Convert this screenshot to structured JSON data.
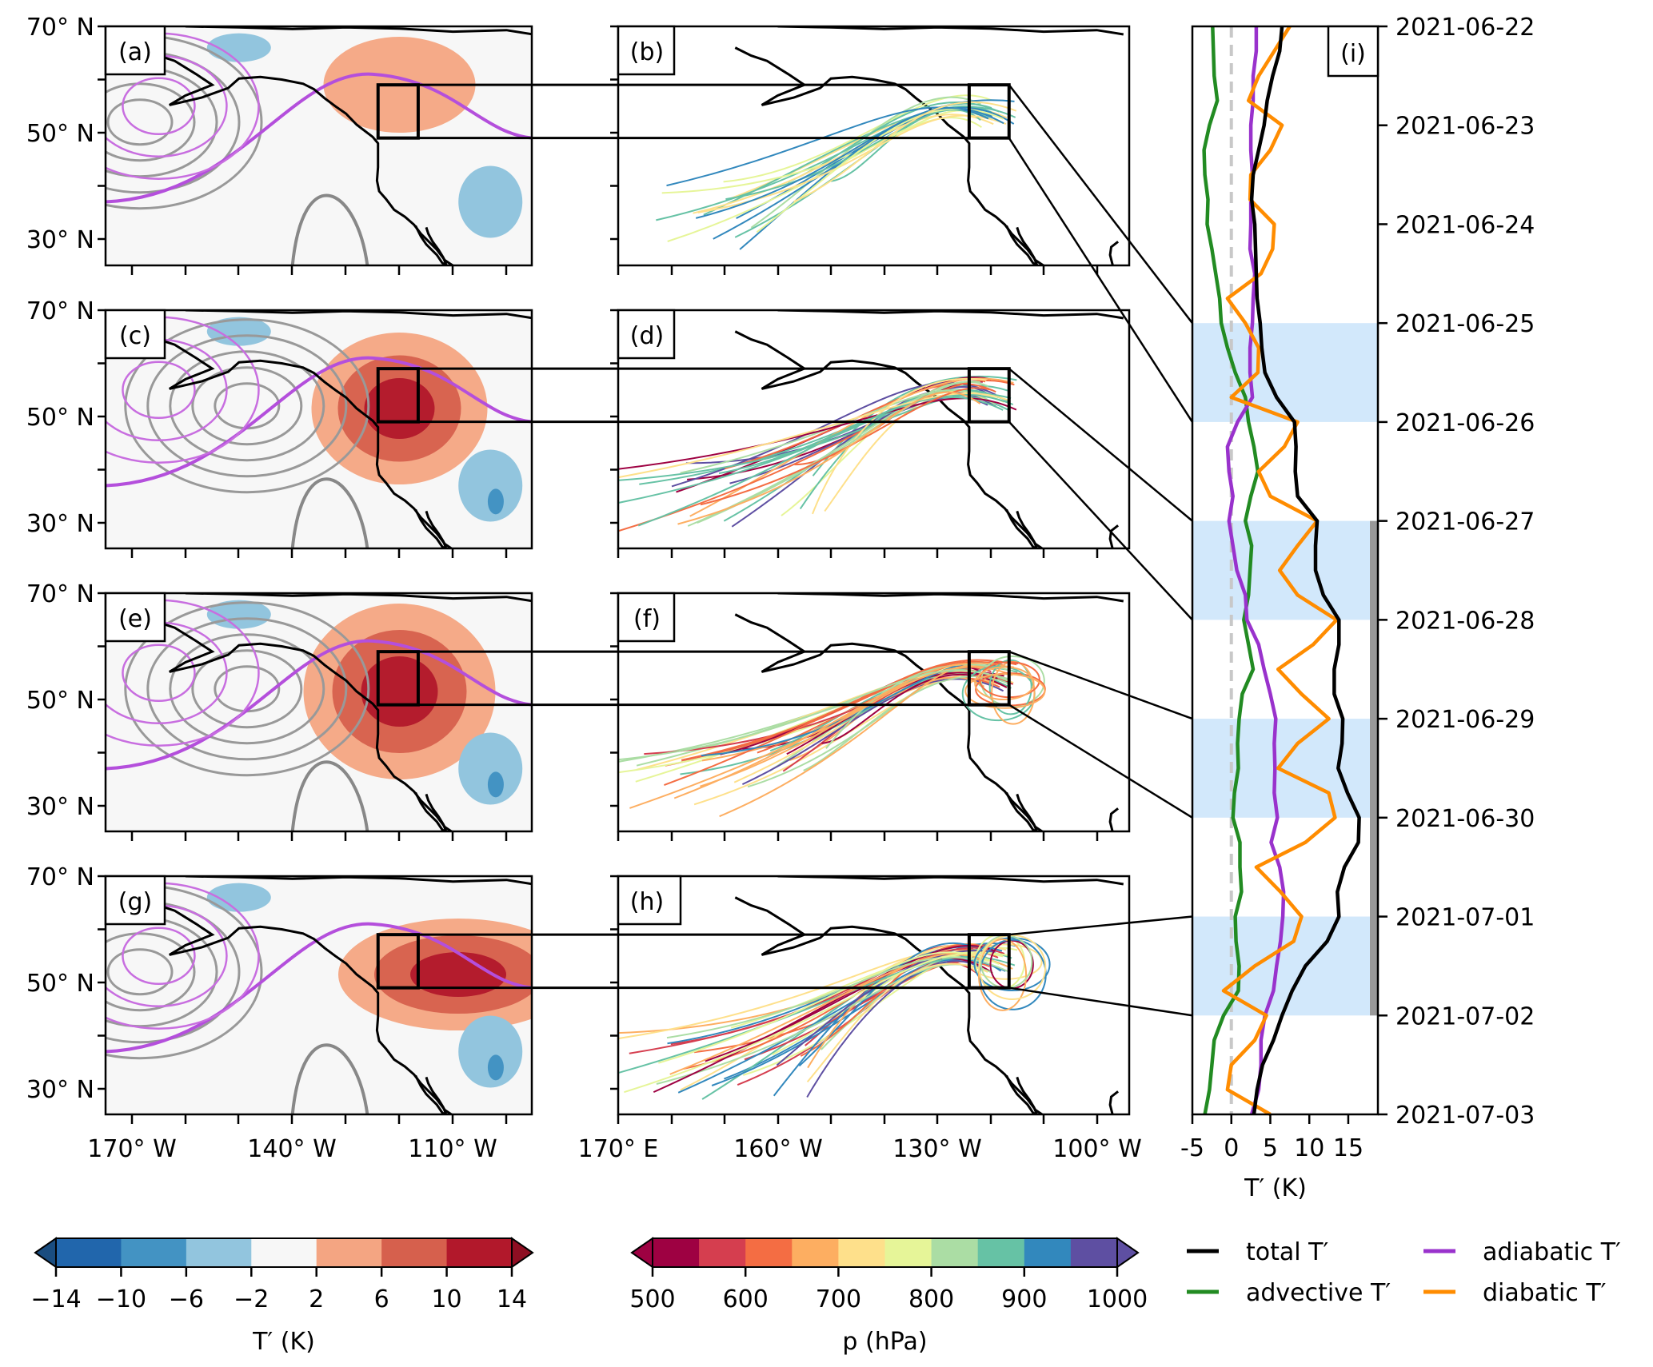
{
  "figure": {
    "description": "2021 Pacific Northwest heat wave: T' anomaly maps, backward trajectories, and T' decomposition time series"
  },
  "chart_data": [
    {
      "type": "map_contourf",
      "panels": [
        "(a)",
        "(c)",
        "(e)",
        "(g)"
      ],
      "panel_ids": [
        "a",
        "c",
        "e",
        "g"
      ],
      "lat_ticks": [
        "70° N",
        "50° N",
        "30° N"
      ],
      "lat_tick_values": [
        70,
        60,
        50,
        40,
        30
      ],
      "lon_ticks_labeled": [
        "170° W",
        "140° W",
        "110° W"
      ],
      "lon_tick_count": 8,
      "target_box": "approx 49–59° N, 124–113° W",
      "layers": [
        "T' filled contours",
        "geopotential contours (gray)",
        "geopotential anomaly contours (purple)",
        "coastlines"
      ]
    },
    {
      "type": "map_trajectories",
      "panels": [
        "(b)",
        "(d)",
        "(f)",
        "(h)"
      ],
      "panel_ids": [
        "b",
        "d",
        "f",
        "h"
      ],
      "lon_ticks_labeled": [
        "170° E",
        "160° W",
        "130° W",
        "100° W"
      ],
      "lon_tick_count": 10,
      "color_variable": "p (hPa)"
    },
    {
      "type": "line",
      "panel": "(i)",
      "xlabel": "T′ (K)",
      "xlim": [
        -5,
        18.8
      ],
      "xticks": [
        "-5",
        "0",
        "5",
        "10",
        "15"
      ],
      "xtick_values": [
        -5,
        0,
        5,
        10,
        15
      ],
      "y_axis": "time (downward)",
      "ylim_days": [
        0,
        11
      ],
      "yticks": [
        "2021-06-22",
        "2021-06-23",
        "2021-06-24",
        "2021-06-25",
        "2021-06-26",
        "2021-06-27",
        "2021-06-28",
        "2021-06-29",
        "2021-06-30",
        "2021-07-01",
        "2021-07-02",
        "2021-07-03"
      ],
      "shaded_periods_days": [
        [
          3,
          4
        ],
        [
          5,
          6
        ],
        [
          7,
          8
        ],
        [
          9,
          10
        ]
      ],
      "shade_color": "#d2e8fb",
      "heatwave_bar_days": [
        5,
        10
      ],
      "heatwave_bar_color": "#999999",
      "zero_line": {
        "x": 0,
        "color": "#c8c8c8",
        "style": "dashed"
      },
      "t_days": [
        0,
        0.25,
        0.5,
        0.75,
        1,
        1.25,
        1.5,
        1.75,
        2,
        2.25,
        2.5,
        2.75,
        3,
        3.25,
        3.5,
        3.75,
        4,
        4.25,
        4.5,
        4.75,
        5,
        5.25,
        5.5,
        5.75,
        6,
        6.25,
        6.5,
        6.75,
        7,
        7.25,
        7.5,
        7.75,
        8,
        8.25,
        8.5,
        8.75,
        9,
        9.25,
        9.5,
        9.75,
        10,
        10.25,
        10.5,
        10.75,
        11
      ],
      "series": [
        {
          "name": "total T′",
          "color": "#000000",
          "values": [
            6.5,
            6.2,
            5.3,
            4.6,
            4.2,
            3.5,
            2.8,
            2.6,
            3,
            3.1,
            3.2,
            3.3,
            3.7,
            3.9,
            4.3,
            5.8,
            8.1,
            8.3,
            8.2,
            8.5,
            11,
            10.8,
            10.8,
            11.8,
            13.8,
            13.8,
            13.2,
            13.2,
            14.3,
            14.2,
            13.7,
            14.9,
            16.4,
            16.3,
            14.5,
            13.6,
            13.8,
            12.3,
            9.5,
            7.8,
            6.5,
            5.4,
            4,
            3.3,
            2.9
          ]
        },
        {
          "name": "advective T′",
          "color": "#228b22",
          "values": [
            -2.4,
            -2.3,
            -2.2,
            -1.8,
            -2.8,
            -3.5,
            -3.4,
            -3,
            -3.1,
            -2.5,
            -2,
            -1.5,
            -1.3,
            -0.5,
            0.5,
            1.8,
            2.2,
            2.9,
            3.4,
            2.5,
            1.8,
            2.6,
            2.4,
            2.2,
            1.6,
            2.2,
            2.8,
            1.4,
            1,
            0.8,
            0.9,
            0.4,
            0.2,
            1.1,
            1.1,
            1.3,
            0.5,
            0.6,
            1,
            0.9,
            -1,
            -2.2,
            -2.5,
            -2.8,
            -3.4
          ]
        },
        {
          "name": "adiabatic T′",
          "color": "#9932cc",
          "values": [
            3.2,
            3.2,
            2.8,
            2.8,
            2.5,
            2.5,
            2.7,
            2.5,
            2.5,
            2.4,
            3,
            2.8,
            2.7,
            2.4,
            2.4,
            2.7,
            0.8,
            -0.5,
            -0.3,
            0.2,
            -0.3,
            0.2,
            0.7,
            1.8,
            2,
            3.5,
            4.2,
            5,
            5.7,
            5.5,
            5.6,
            5.5,
            5.9,
            5.1,
            6.2,
            6.7,
            6.6,
            6.3,
            5.8,
            5.4,
            4.3,
            3.8,
            3.8,
            3.5,
            2.6
          ]
        },
        {
          "name": "diabatic T′",
          "color": "#ff8c00",
          "values": [
            7.5,
            5.5,
            3.5,
            2.2,
            6.5,
            5,
            2.5,
            2.4,
            5.5,
            5.3,
            3.8,
            -0.5,
            1.8,
            3.5,
            3.4,
            0,
            8.5,
            6.8,
            3.5,
            5,
            11,
            8.5,
            6.2,
            8.5,
            13.5,
            10.5,
            6,
            9,
            12.5,
            8.5,
            6,
            12.5,
            13.3,
            9.5,
            3.2,
            6.3,
            9,
            8,
            3,
            -1,
            4.5,
            3,
            0,
            -0.5,
            5
          ]
        }
      ],
      "legend": {
        "placement": "below",
        "entries": [
          "total T′",
          "advective T′",
          "adiabatic T′",
          "diabatic T′"
        ]
      }
    },
    {
      "type": "colorbar",
      "label": "T′ (K)",
      "ticks": [
        "−14",
        "−10",
        "−6",
        "−2",
        "2",
        "6",
        "10",
        "14"
      ],
      "bounds": [
        -14,
        -10,
        -6,
        -2,
        2,
        6,
        10,
        14
      ],
      "colors": [
        "#2166ac",
        "#4393c3",
        "#92c5de",
        "#f7f7f7",
        "#f4a582",
        "#d6604d",
        "#b2182b"
      ],
      "under_color": "#1a4d80",
      "over_color": "#8e0e22",
      "extend": "both"
    },
    {
      "type": "colorbar",
      "label": "p (hPa)",
      "ticks": [
        "500",
        "600",
        "700",
        "800",
        "900",
        "1000"
      ],
      "bounds": [
        500,
        550,
        600,
        650,
        700,
        750,
        800,
        850,
        900,
        950,
        1000
      ],
      "colors": [
        "#9e0142",
        "#d53e4f",
        "#f46d43",
        "#fdae61",
        "#fee08b",
        "#e6f598",
        "#abdda4",
        "#66c2a5",
        "#3288bd",
        "#5e4fa2"
      ],
      "under_color": "#9e0142",
      "over_color": "#5e4fa2",
      "extend": "both"
    }
  ]
}
